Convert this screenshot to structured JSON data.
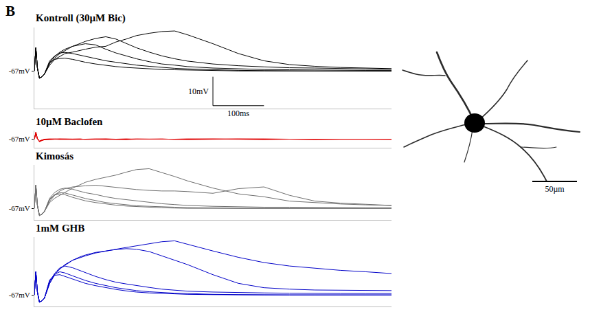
{
  "panel_label": "B",
  "image": {
    "scale_bar": {
      "value": 50,
      "label": "50µm"
    }
  },
  "chart_data": [
    {
      "type": "line",
      "title": "Kontroll (30µM Bic)",
      "color": "#000000",
      "x": [
        0,
        3,
        6,
        10,
        15,
        20,
        30,
        40,
        50,
        60,
        75,
        90,
        100,
        120,
        140,
        160,
        180,
        200,
        225,
        250,
        275,
        300,
        350,
        400,
        450,
        500,
        550,
        600,
        650,
        700
      ],
      "xlim": [
        0,
        700
      ],
      "xticks": [],
      "ylim": [
        -80,
        -52
      ],
      "yticks": [
        {
          "value": -67,
          "label": "-67mV"
        }
      ],
      "tick_labels": "y",
      "grid": false,
      "scale_bar": {
        "x": 100,
        "x_label": "100ms",
        "y": 10,
        "y_label": "10mV"
      },
      "series": [
        {
          "values": [
            -67,
            -59,
            -66,
            -69.5,
            -69,
            -68,
            -65,
            -63,
            -62,
            -61,
            -60.5,
            -60,
            -59.5,
            -58.8,
            -58.5,
            -57,
            -56,
            -54.8,
            -54,
            -53.4,
            -53.2,
            -54.5,
            -57.6,
            -61,
            -63.5,
            -64.8,
            -65.4,
            -65.8,
            -66,
            -66.2
          ]
        },
        {
          "values": [
            -67,
            -59,
            -66,
            -69.5,
            -69,
            -68,
            -64.5,
            -62.5,
            -61,
            -60,
            -58.5,
            -57.5,
            -56.8,
            -55.8,
            -55.2,
            -56,
            -57.5,
            -59,
            -60.5,
            -61.8,
            -62.8,
            -63.6,
            -64.6,
            -65.2,
            -65.6,
            -65.9,
            -66,
            -66.2,
            -66.3,
            -66.4
          ]
        },
        {
          "values": [
            -67,
            -59,
            -66,
            -69.5,
            -69,
            -68,
            -64,
            -62,
            -60.5,
            -59.5,
            -58.5,
            -58,
            -57.6,
            -58,
            -59.5,
            -60.8,
            -61.8,
            -62.8,
            -63.8,
            -64.6,
            -65,
            -65.5,
            -66,
            -66.3,
            -66.5,
            -66.6,
            -66.7,
            -66.7,
            -66.8,
            -66.8
          ]
        },
        {
          "values": [
            -67,
            -59,
            -66,
            -69.5,
            -69,
            -68,
            -63.5,
            -61.8,
            -60.8,
            -60.6,
            -61,
            -61.6,
            -62,
            -62.8,
            -63.5,
            -64,
            -64.5,
            -65,
            -65.4,
            -65.8,
            -66.1,
            -66.3,
            -66.6,
            -66.8,
            -66.9,
            -67,
            -67,
            -67,
            -67,
            -67
          ]
        },
        {
          "values": [
            -67,
            -59,
            -66,
            -69.5,
            -69,
            -68,
            -64,
            -63,
            -62.7,
            -62.6,
            -63,
            -63.6,
            -64,
            -64.6,
            -65.1,
            -65.5,
            -65.8,
            -66,
            -66.3,
            -66.5,
            -66.6,
            -66.7,
            -66.9,
            -67,
            -67,
            -67,
            -67.1,
            -67,
            -67,
            -67.1
          ]
        }
      ]
    },
    {
      "type": "line",
      "title": "10µM Baclofen",
      "color": "#e00000",
      "x": [
        0,
        3,
        6,
        10,
        15,
        20,
        30,
        40,
        50,
        60,
        75,
        90,
        100,
        120,
        140,
        160,
        180,
        200,
        225,
        250,
        275,
        300,
        350,
        400,
        450,
        500,
        550,
        600,
        650,
        700
      ],
      "xlim": [
        0,
        700
      ],
      "xticks": [],
      "ylim": [
        -70,
        -64
      ],
      "yticks": [
        {
          "value": -67,
          "label": "-67mV"
        }
      ],
      "tick_labels": "y",
      "grid": false,
      "series": [
        {
          "values": [
            -67,
            -64.5,
            -66.8,
            -67.8,
            -67.4,
            -67.1,
            -67,
            -66.9,
            -67,
            -67.1,
            -67,
            -66.9,
            -67,
            -67,
            -67.1,
            -67,
            -66.9,
            -67,
            -67,
            -67.1,
            -67,
            -67,
            -66.9,
            -67,
            -67.1,
            -67,
            -67,
            -66.9,
            -67,
            -67
          ]
        },
        {
          "values": [
            -67,
            -65,
            -66.9,
            -67.7,
            -67.3,
            -67.1,
            -67.1,
            -67,
            -67,
            -66.9,
            -67,
            -67.1,
            -67,
            -66.9,
            -67,
            -67,
            -67.1,
            -67,
            -67,
            -66.9,
            -67,
            -67.1,
            -67,
            -67,
            -66.9,
            -67,
            -67.1,
            -67,
            -67,
            -67.1
          ]
        },
        {
          "values": [
            -67,
            -64.8,
            -66.7,
            -67.9,
            -67.5,
            -67.2,
            -67,
            -67,
            -66.9,
            -67,
            -67,
            -67.1,
            -67,
            -67,
            -66.9,
            -67,
            -67,
            -67.1,
            -67,
            -67,
            -67,
            -66.9,
            -67,
            -67,
            -67.1,
            -67,
            -67,
            -67,
            -66.9,
            -67
          ]
        },
        {
          "values": [
            -67,
            -65.2,
            -66.9,
            -67.6,
            -67.3,
            -67,
            -66.9,
            -67,
            -67.1,
            -67,
            -67,
            -66.9,
            -67.1,
            -67,
            -67,
            -67,
            -67.1,
            -66.9,
            -67,
            -67,
            -67,
            -67.1,
            -67,
            -66.9,
            -67,
            -67,
            -67,
            -67.1,
            -67,
            -67
          ]
        },
        {
          "values": [
            -67,
            -64.6,
            -66.8,
            -67.8,
            -67.4,
            -67.1,
            -67.1,
            -67,
            -66.9,
            -67,
            -67.1,
            -67,
            -67,
            -66.9,
            -67,
            -67.1,
            -67,
            -67,
            -67,
            -66.9,
            -67.1,
            -67,
            -67,
            -67,
            -66.9,
            -67,
            -67.1,
            -67,
            -67,
            -67
          ]
        }
      ]
    },
    {
      "type": "line",
      "title": "Kimosás",
      "color": "#6e6e6e",
      "x": [
        0,
        3,
        6,
        10,
        15,
        20,
        30,
        40,
        50,
        60,
        75,
        90,
        100,
        120,
        140,
        160,
        180,
        200,
        225,
        250,
        275,
        300,
        350,
        400,
        450,
        500,
        550,
        600,
        650,
        700
      ],
      "xlim": [
        0,
        700
      ],
      "xticks": [],
      "ylim": [
        -71,
        -52
      ],
      "yticks": [
        {
          "value": -67,
          "label": "-67mV"
        }
      ],
      "tick_labels": "y",
      "grid": false,
      "series": [
        {
          "values": [
            -67,
            -59,
            -66,
            -69.5,
            -69,
            -68,
            -65,
            -63.5,
            -62.5,
            -61.5,
            -60,
            -58.8,
            -58,
            -57,
            -56.2,
            -55.5,
            -54.5,
            -53.6,
            -53.3,
            -54.6,
            -56,
            -57.5,
            -60,
            -62,
            -63,
            -64.5,
            -65,
            -65.5,
            -65.8,
            -66
          ]
        },
        {
          "values": [
            -67,
            -59,
            -66,
            -69.5,
            -69,
            -68,
            -64.5,
            -62.5,
            -61,
            -60.2,
            -59.6,
            -59.3,
            -59.2,
            -59,
            -59.4,
            -59.8,
            -60.2,
            -60.5,
            -60.8,
            -61,
            -61,
            -61.2,
            -61.8,
            -60.2,
            -59.6,
            -62.5,
            -64.5,
            -65.2,
            -65.6,
            -66
          ]
        },
        {
          "values": [
            -67,
            -59,
            -66,
            -69.5,
            -69,
            -68,
            -63.5,
            -61.5,
            -60.4,
            -60,
            -60.4,
            -61.2,
            -61.6,
            -62.2,
            -63,
            -63.6,
            -64,
            -64.5,
            -65,
            -65.4,
            -65.7,
            -66,
            -66.3,
            -66.5,
            -66.6,
            -66.6,
            -66.7,
            -66.7,
            -66.8,
            -66.8
          ]
        },
        {
          "values": [
            -67,
            -59,
            -66,
            -69.5,
            -69,
            -68,
            -63.8,
            -62.2,
            -61.6,
            -61.7,
            -62.4,
            -63.2,
            -63.6,
            -64.3,
            -65,
            -65.4,
            -65.8,
            -66.1,
            -66.3,
            -66.5,
            -66.6,
            -66.7,
            -66.9,
            -67,
            -67,
            -67,
            -67,
            -67,
            -67,
            -67
          ]
        },
        {
          "values": [
            -67,
            -59,
            -66,
            -69.5,
            -69,
            -68,
            -64,
            -62.4,
            -62,
            -62.3,
            -63.2,
            -64,
            -64.4,
            -65,
            -65.5,
            -65.9,
            -66.2,
            -66.4,
            -66.6,
            -66.8,
            -66.9,
            -67,
            -67,
            -67,
            -67,
            -67,
            -67,
            -67,
            -67,
            -67
          ]
        }
      ]
    },
    {
      "type": "line",
      "title": "1mM GHB",
      "color": "#0000c8",
      "x": [
        0,
        3,
        6,
        10,
        15,
        20,
        30,
        40,
        50,
        60,
        75,
        90,
        100,
        120,
        140,
        160,
        180,
        200,
        225,
        250,
        275,
        300,
        350,
        400,
        450,
        500,
        550,
        600,
        650,
        700
      ],
      "xlim": [
        0,
        700
      ],
      "xticks": [],
      "ylim": [
        -71,
        -47
      ],
      "yticks": [
        {
          "value": -67,
          "label": "-67mV"
        }
      ],
      "tick_labels": "y",
      "grid": false,
      "series": [
        {
          "values": [
            -67,
            -59,
            -66,
            -69.5,
            -69,
            -68,
            -63,
            -60,
            -58,
            -56.5,
            -55,
            -54,
            -53.5,
            -52.5,
            -51.8,
            -51.2,
            -50.6,
            -50,
            -49.2,
            -48.6,
            -48.3,
            -49.5,
            -51.8,
            -54,
            -55.8,
            -57,
            -57.8,
            -58.5,
            -59,
            -59.6
          ]
        },
        {
          "values": [
            -67,
            -59,
            -66,
            -69.5,
            -69,
            -68,
            -63,
            -60,
            -58,
            -56.8,
            -55,
            -53.8,
            -53.2,
            -52.3,
            -51.8,
            -51.3,
            -51,
            -51.2,
            -52,
            -53.5,
            -55,
            -56.5,
            -60,
            -63,
            -64.5,
            -65,
            -65.3,
            -65.4,
            -65.5,
            -65.5
          ]
        },
        {
          "values": [
            -67,
            -59,
            -66,
            -69.5,
            -69,
            -68,
            -62.5,
            -59.5,
            -57.6,
            -57,
            -57.6,
            -58.6,
            -59.4,
            -60.6,
            -61.7,
            -62.6,
            -63.2,
            -63.8,
            -64.4,
            -65,
            -65.4,
            -65.7,
            -66,
            -66.2,
            -66.3,
            -66.4,
            -66.5,
            -66.5,
            -66.5,
            -66.5
          ]
        },
        {
          "values": [
            -67,
            -59,
            -66,
            -69.5,
            -69,
            -68,
            -62,
            -59.8,
            -59,
            -59.4,
            -60.4,
            -61.4,
            -62,
            -63,
            -63.8,
            -64.5,
            -65,
            -65.5,
            -65.9,
            -66.2,
            -66.4,
            -66.5,
            -66.8,
            -66.9,
            -67,
            -67,
            -67,
            -67,
            -67,
            -67
          ]
        },
        {
          "values": [
            -67,
            -59,
            -66,
            -69.5,
            -69,
            -68,
            -61.8,
            -60.2,
            -60,
            -60.6,
            -61.6,
            -62.5,
            -63,
            -63.8,
            -64.5,
            -65.1,
            -65.6,
            -66,
            -66.3,
            -66.5,
            -66.7,
            -66.8,
            -66.9,
            -67,
            -67,
            -67,
            -67,
            -67,
            -67,
            -67
          ]
        }
      ]
    }
  ]
}
